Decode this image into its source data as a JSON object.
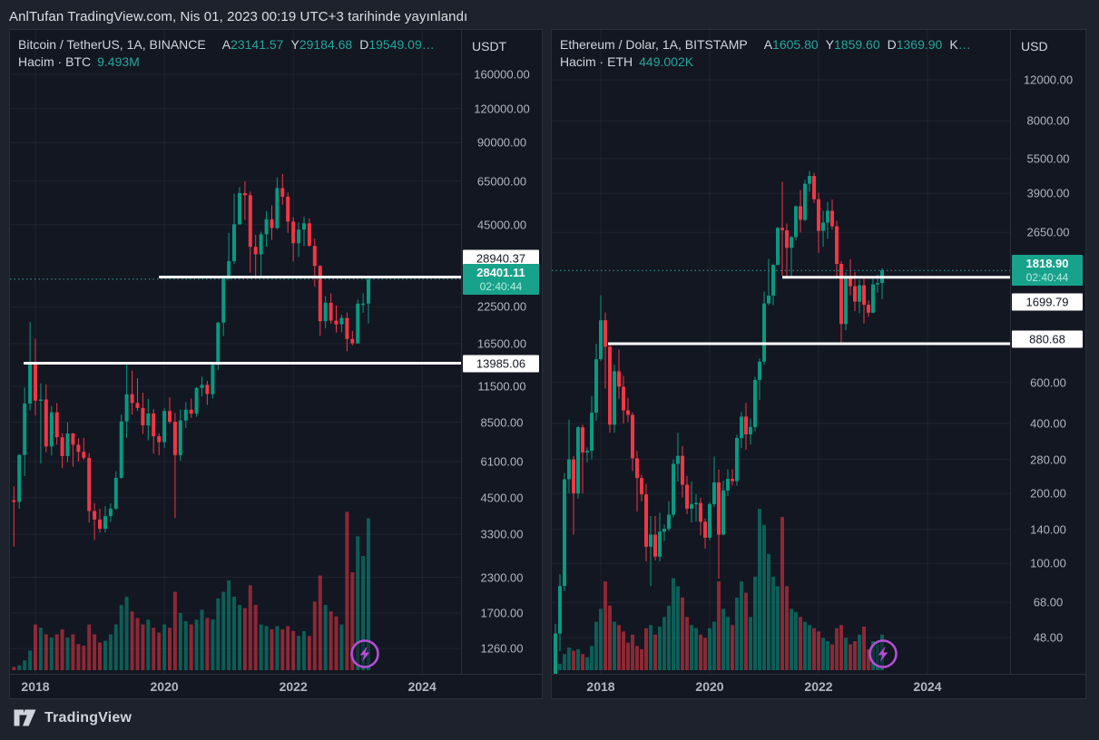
{
  "header": {
    "published_text": "AnlTufan TradingView.com, Nis 01, 2023 00:19 UTC+3 tarihinde yayınlandı"
  },
  "footer": {
    "brand": "TradingView"
  },
  "colors": {
    "up": "#089981",
    "down": "#f23645",
    "up_volume": "rgba(8,153,129,0.55)",
    "down_volume": "rgba(242,54,69,0.55)",
    "grid": "rgba(240,243,250,0.06)",
    "white_line": "#ffffff",
    "current_line": "#26a69a",
    "current_tag_bg": "#17a28b",
    "accent_purple": "#b44fd6",
    "value_green": "#26a69a"
  },
  "charts": [
    {
      "currency": "USDT",
      "legend": {
        "title": "Bitcoin / TetherUS, 1A, BINANCE",
        "ohlc": [
          {
            "k": "A",
            "v": "23141.57"
          },
          {
            "k": "Y",
            "v": "29184.68"
          },
          {
            "k": "D",
            "v": "19549.09…"
          }
        ],
        "volume_label": "Hacim · BTC",
        "volume_value": "9.493M"
      },
      "axis_tags": [
        {
          "type": "white",
          "label": "28940.37",
          "value": 28940.37,
          "dy": -21
        },
        {
          "type": "current",
          "lines": [
            "28401.11",
            "02:40:44"
          ],
          "value": 28401.11,
          "dy": 0
        },
        {
          "type": "white",
          "label": "13985.06",
          "value": 13985.06,
          "dy": 0
        }
      ]
    },
    {
      "currency": "USD",
      "legend": {
        "title": "Ethereum / Dolar, 1A, BITSTAMP",
        "ohlc": [
          {
            "k": "A",
            "v": "1605.80"
          },
          {
            "k": "Y",
            "v": "1859.60"
          },
          {
            "k": "D",
            "v": "1369.90"
          },
          {
            "k": "K",
            "v": "…"
          }
        ],
        "volume_label": "Hacim · ETH",
        "volume_value": "449.002K"
      },
      "axis_tags": [
        {
          "type": "current",
          "lines": [
            "1818.90",
            "02:40:44"
          ],
          "value": 1818.9,
          "dy": 0
        },
        {
          "type": "white",
          "label": "1699.79",
          "value": 1699.79,
          "dy": 27
        },
        {
          "type": "white",
          "label": "880.68",
          "value": 880.68,
          "dy": -5
        }
      ]
    }
  ],
  "chart_data": [
    {
      "type": "candlestick",
      "symbol": "Bitcoin / TetherUS",
      "exchange": "BINANCE",
      "interval": "1A",
      "scale": "log",
      "start_month": "2017-09",
      "current_price": 28401.11,
      "countdown": "02:40:44",
      "price_lines": [
        {
          "value": 28940.37,
          "start_month": 27
        },
        {
          "value": 13985.06,
          "start_month": 1.8
        }
      ],
      "y_ticks": [
        {
          "value": 160000,
          "label": "160000.00"
        },
        {
          "value": 120000,
          "label": "120000.00"
        },
        {
          "value": 90000,
          "label": "90000.00"
        },
        {
          "value": 65000,
          "label": "65000.00"
        },
        {
          "value": 45000,
          "label": "45000.00"
        },
        {
          "value": 22500,
          "label": "22500.00"
        },
        {
          "value": 16500,
          "label": "16500.00"
        },
        {
          "value": 11500,
          "label": "11500.00"
        },
        {
          "value": 8500,
          "label": "8500.00"
        },
        {
          "value": 6100,
          "label": "6100.00"
        },
        {
          "value": 4500,
          "label": "4500.00"
        },
        {
          "value": 3300,
          "label": "3300.00"
        },
        {
          "value": 2300,
          "label": "2300.00"
        },
        {
          "value": 1700,
          "label": "1700.00"
        },
        {
          "value": 1260,
          "label": "1260.00"
        }
      ],
      "x_ticks": [
        {
          "label": "2018",
          "month": 4
        },
        {
          "label": "2020",
          "month": 28
        },
        {
          "label": "2022",
          "month": 52
        },
        {
          "label": "2024",
          "month": 76
        }
      ],
      "ohlc": [
        [
          4400,
          4950,
          2980,
          4340
        ],
        [
          4340,
          6500,
          4100,
          6450
        ],
        [
          6450,
          11400,
          5400,
          9950
        ],
        [
          9950,
          19800,
          9400,
          14150
        ],
        [
          14150,
          17200,
          9000,
          10200
        ],
        [
          10200,
          11800,
          6000,
          10300
        ],
        [
          10300,
          11700,
          6600,
          6930
        ],
        [
          6930,
          9760,
          6420,
          9240
        ],
        [
          9240,
          9990,
          7050,
          7490
        ],
        [
          7490,
          7750,
          5770,
          6390
        ],
        [
          6390,
          8500,
          6070,
          7730
        ],
        [
          7730,
          7770,
          5850,
          7030
        ],
        [
          7030,
          7420,
          6100,
          6620
        ],
        [
          6620,
          7450,
          6200,
          6300
        ],
        [
          6300,
          6550,
          3650,
          4020
        ],
        [
          4020,
          4300,
          3150,
          3740
        ],
        [
          3740,
          4100,
          3350,
          3460
        ],
        [
          3460,
          4190,
          3350,
          3850
        ],
        [
          3850,
          4290,
          3670,
          4100
        ],
        [
          4100,
          5620,
          4060,
          5320
        ],
        [
          5320,
          9070,
          5270,
          8560
        ],
        [
          8560,
          13870,
          7450,
          10770
        ],
        [
          10770,
          13150,
          9080,
          10000
        ],
        [
          10000,
          12320,
          9350,
          9590
        ],
        [
          9590,
          10900,
          7700,
          8280
        ],
        [
          8280,
          10350,
          7300,
          9150
        ],
        [
          9150,
          9500,
          6520,
          7550
        ],
        [
          7550,
          7750,
          6430,
          7190
        ],
        [
          7190,
          9570,
          6850,
          9350
        ],
        [
          9350,
          10500,
          8400,
          8540
        ],
        [
          8540,
          9200,
          3780,
          6440
        ],
        [
          6440,
          9460,
          6140,
          8630
        ],
        [
          8630,
          10070,
          8100,
          9450
        ],
        [
          9450,
          10380,
          8830,
          9140
        ],
        [
          9140,
          11440,
          8900,
          11350
        ],
        [
          11350,
          12480,
          10550,
          11650
        ],
        [
          11650,
          12050,
          9830,
          10780
        ],
        [
          10780,
          14100,
          10380,
          13800
        ],
        [
          13800,
          19860,
          13200,
          19700
        ],
        [
          19700,
          29300,
          17600,
          29000
        ],
        [
          29000,
          41990,
          28130,
          33100
        ],
        [
          33100,
          58350,
          32330,
          45160
        ],
        [
          45160,
          61780,
          44950,
          58780
        ],
        [
          58780,
          64860,
          46930,
          57750
        ],
        [
          57750,
          59500,
          30000,
          37330
        ],
        [
          37330,
          41330,
          28800,
          35040
        ],
        [
          35040,
          42410,
          29300,
          41490
        ],
        [
          41490,
          50500,
          37330,
          47110
        ],
        [
          47110,
          52920,
          39600,
          43790
        ],
        [
          43790,
          66970,
          43290,
          61310
        ],
        [
          61310,
          69000,
          53260,
          57000
        ],
        [
          57000,
          59050,
          42000,
          46210
        ],
        [
          46210,
          47990,
          32950,
          38480
        ],
        [
          38480,
          45820,
          34300,
          43190
        ],
        [
          43190,
          48190,
          37550,
          45520
        ],
        [
          45520,
          47450,
          37580,
          37630
        ],
        [
          37630,
          40020,
          26700,
          31790
        ],
        [
          31790,
          31960,
          17600,
          19940
        ],
        [
          19940,
          24670,
          18780,
          23290
        ],
        [
          23290,
          25210,
          19520,
          20050
        ],
        [
          20050,
          22800,
          18120,
          19420
        ],
        [
          19420,
          21080,
          18190,
          20490
        ],
        [
          20490,
          21480,
          15480,
          17160
        ],
        [
          17160,
          18390,
          16250,
          16540
        ],
        [
          16540,
          23960,
          16490,
          23130
        ],
        [
          23130,
          25250,
          21390,
          23140
        ],
        [
          23141.57,
          29184.68,
          19549.09,
          28401.11
        ]
      ],
      "volume_rel": [
        0.02,
        0.03,
        0.06,
        0.12,
        0.28,
        0.26,
        0.22,
        0.2,
        0.22,
        0.25,
        0.2,
        0.22,
        0.16,
        0.15,
        0.28,
        0.22,
        0.17,
        0.18,
        0.22,
        0.28,
        0.4,
        0.45,
        0.36,
        0.32,
        0.28,
        0.31,
        0.26,
        0.23,
        0.28,
        0.26,
        0.48,
        0.35,
        0.3,
        0.28,
        0.31,
        0.37,
        0.32,
        0.31,
        0.44,
        0.48,
        0.55,
        0.45,
        0.4,
        0.38,
        0.52,
        0.4,
        0.28,
        0.27,
        0.25,
        0.27,
        0.25,
        0.27,
        0.24,
        0.21,
        0.24,
        0.21,
        0.42,
        0.58,
        0.4,
        0.36,
        0.33,
        0.28,
        0.97,
        0.6,
        0.82,
        0.7,
        0.93
      ]
    },
    {
      "type": "candlestick",
      "symbol": "Ethereum / Dolar",
      "exchange": "BITSTAMP",
      "interval": "1A",
      "scale": "log",
      "start_month": "2017-03",
      "current_price": 1818.9,
      "countdown": "02:40:44",
      "price_lines": [
        {
          "value": 1699.79,
          "start_month": 50
        },
        {
          "value": 880.68,
          "start_month": 11.6
        }
      ],
      "y_ticks": [
        {
          "value": 12000,
          "label": "12000.00"
        },
        {
          "value": 8000,
          "label": "8000.00"
        },
        {
          "value": 5500,
          "label": "5500.00"
        },
        {
          "value": 3900,
          "label": "3900.00"
        },
        {
          "value": 2650,
          "label": "2650.00"
        },
        {
          "value": 600,
          "label": "600.00"
        },
        {
          "value": 400,
          "label": "400.00"
        },
        {
          "value": 280,
          "label": "280.00"
        },
        {
          "value": 200,
          "label": "200.00"
        },
        {
          "value": 140,
          "label": "140.00"
        },
        {
          "value": 100,
          "label": "100.00"
        },
        {
          "value": 68,
          "label": "68.00"
        },
        {
          "value": 48,
          "label": "48.00"
        }
      ],
      "x_ticks": [
        {
          "label": "2018",
          "month": 10
        },
        {
          "label": "2020",
          "month": 34
        },
        {
          "label": "2022",
          "month": 58
        },
        {
          "label": "2024",
          "month": 82
        }
      ],
      "ohlc": [
        [
          17,
          55,
          15,
          50
        ],
        [
          50,
          90,
          42,
          80
        ],
        [
          80,
          245,
          76,
          230
        ],
        [
          230,
          415,
          200,
          280
        ],
        [
          280,
          290,
          133,
          200
        ],
        [
          200,
          390,
          190,
          385
        ],
        [
          385,
          395,
          200,
          300
        ],
        [
          300,
          315,
          272,
          305
        ],
        [
          305,
          525,
          280,
          445
        ],
        [
          445,
          880,
          410,
          755
        ],
        [
          755,
          1420,
          742,
          1110
        ],
        [
          1110,
          1200,
          565,
          855
        ],
        [
          855,
          880,
          365,
          395
        ],
        [
          395,
          715,
          365,
          670
        ],
        [
          670,
          830,
          510,
          575
        ],
        [
          575,
          640,
          400,
          455
        ],
        [
          455,
          515,
          405,
          435
        ],
        [
          435,
          445,
          250,
          283
        ],
        [
          283,
          305,
          167,
          233
        ],
        [
          233,
          240,
          185,
          198
        ],
        [
          198,
          220,
          102,
          118
        ],
        [
          118,
          160,
          80,
          133
        ],
        [
          133,
          160,
          103,
          107
        ],
        [
          107,
          165,
          102,
          137
        ],
        [
          137,
          147,
          125,
          141
        ],
        [
          141,
          185,
          138,
          162
        ],
        [
          162,
          280,
          158,
          268
        ],
        [
          268,
          365,
          225,
          290
        ],
        [
          290,
          320,
          192,
          218
        ],
        [
          218,
          238,
          163,
          172
        ],
        [
          172,
          225,
          150,
          180
        ],
        [
          180,
          199,
          151,
          182
        ],
        [
          182,
          192,
          132,
          151
        ],
        [
          151,
          156,
          116,
          129
        ],
        [
          129,
          183,
          126,
          180
        ],
        [
          180,
          288,
          175,
          223
        ],
        [
          223,
          253,
          86,
          133
        ],
        [
          133,
          227,
          132,
          206
        ],
        [
          206,
          254,
          195,
          231
        ],
        [
          231,
          254,
          216,
          226
        ],
        [
          226,
          358,
          216,
          346
        ],
        [
          346,
          447,
          313,
          428
        ],
        [
          428,
          490,
          308,
          359
        ],
        [
          359,
          420,
          325,
          386
        ],
        [
          386,
          635,
          370,
          615
        ],
        [
          615,
          760,
          505,
          737
        ],
        [
          737,
          1477,
          715,
          1312
        ],
        [
          1312,
          2040,
          1290,
          1418
        ],
        [
          1418,
          1945,
          1290,
          1919
        ],
        [
          1919,
          2798,
          1915,
          2772
        ],
        [
          2772,
          4375,
          1728,
          2707
        ],
        [
          2707,
          2890,
          1700,
          2274
        ],
        [
          2274,
          2550,
          1715,
          2530
        ],
        [
          2530,
          3460,
          2450,
          3430
        ],
        [
          3430,
          4030,
          2650,
          3000
        ],
        [
          3000,
          4460,
          2960,
          4290
        ],
        [
          4290,
          4870,
          3960,
          4630
        ],
        [
          4630,
          4780,
          3550,
          3680
        ],
        [
          3680,
          3920,
          2160,
          2688
        ],
        [
          2688,
          3285,
          2300,
          2920
        ],
        [
          2920,
          3580,
          2490,
          3280
        ],
        [
          3280,
          3670,
          2720,
          2815
        ],
        [
          2815,
          2975,
          1700,
          1940
        ],
        [
          1940,
          1995,
          880,
          1070
        ],
        [
          1070,
          1785,
          1005,
          1680
        ],
        [
          1680,
          2030,
          1420,
          1555
        ],
        [
          1555,
          1790,
          1215,
          1335
        ],
        [
          1335,
          1665,
          1190,
          1570
        ],
        [
          1570,
          1680,
          1075,
          1295
        ],
        [
          1295,
          1350,
          1150,
          1197
        ],
        [
          1197,
          1675,
          1190,
          1585
        ],
        [
          1585,
          1745,
          1461,
          1605
        ],
        [
          1605.8,
          1859.6,
          1369.9,
          1818.9
        ]
      ],
      "volume_rel": [
        0.03,
        0.04,
        0.1,
        0.14,
        0.12,
        0.13,
        0.1,
        0.08,
        0.15,
        0.3,
        0.38,
        0.55,
        0.4,
        0.3,
        0.28,
        0.24,
        0.17,
        0.22,
        0.15,
        0.13,
        0.26,
        0.28,
        0.22,
        0.27,
        0.33,
        0.4,
        0.57,
        0.52,
        0.45,
        0.33,
        0.28,
        0.26,
        0.22,
        0.2,
        0.26,
        0.3,
        0.55,
        0.38,
        0.33,
        0.28,
        0.45,
        0.55,
        0.48,
        0.33,
        0.58,
        1.0,
        0.9,
        0.72,
        0.58,
        0.52,
        0.95,
        0.52,
        0.38,
        0.36,
        0.33,
        0.3,
        0.28,
        0.26,
        0.24,
        0.2,
        0.18,
        0.16,
        0.26,
        0.28,
        0.2,
        0.16,
        0.18,
        0.22,
        0.27,
        0.13,
        0.18,
        0.16,
        0.22
      ]
    }
  ]
}
